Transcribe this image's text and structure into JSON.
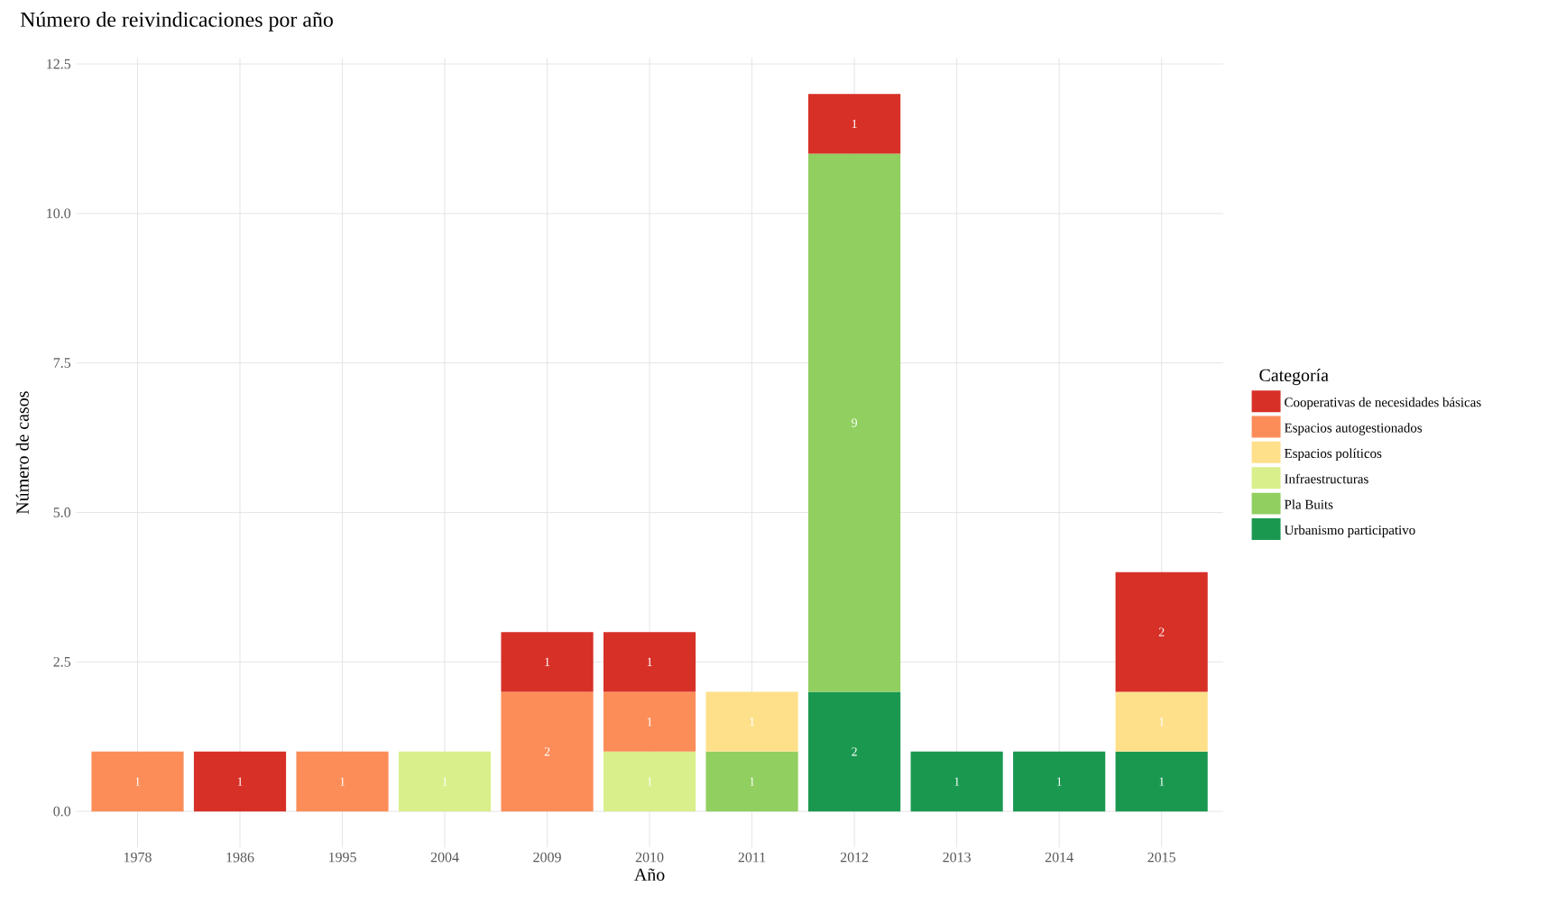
{
  "chart_data": {
    "type": "bar",
    "title": "Número de reivindicaciones por año",
    "xlabel": "Año",
    "ylabel": "Número de casos",
    "legend_title": "Categoría",
    "categories": [
      "1978",
      "1986",
      "1995",
      "2004",
      "2009",
      "2010",
      "2011",
      "2012",
      "2013",
      "2014",
      "2015"
    ],
    "stacked": true,
    "data_labels": true,
    "grid": true,
    "legend": "right",
    "ylim": [
      -0.6,
      12.6
    ],
    "yticks": [
      {
        "value": 0,
        "label": "0.0"
      },
      2.5,
      {
        "value": 5,
        "label": "5.0"
      },
      7.5,
      {
        "value": 10,
        "label": "10.0"
      },
      12.5
    ],
    "series": [
      {
        "name": "Urbanismo participativo",
        "color": "#1a9850",
        "values": [
          null,
          null,
          null,
          null,
          null,
          null,
          null,
          2,
          1,
          1,
          1
        ]
      },
      {
        "name": "Pla Buits",
        "color": "#91cf60",
        "values": [
          null,
          null,
          null,
          null,
          null,
          null,
          1,
          9,
          null,
          null,
          null
        ]
      },
      {
        "name": "Infraestructuras",
        "color": "#d9ef8b",
        "values": [
          null,
          null,
          null,
          1,
          null,
          1,
          null,
          null,
          null,
          null,
          null
        ]
      },
      {
        "name": "Espacios políticos",
        "color": "#fee08b",
        "values": [
          null,
          null,
          null,
          null,
          null,
          null,
          1,
          null,
          null,
          null,
          1
        ]
      },
      {
        "name": "Espacios autogestionados",
        "color": "#fc8d59",
        "values": [
          1,
          null,
          1,
          null,
          2,
          1,
          null,
          null,
          null,
          null,
          null
        ]
      },
      {
        "name": "Cooperativas de necesidades básicas",
        "color": "#d73027",
        "values": [
          null,
          1,
          null,
          null,
          1,
          1,
          null,
          1,
          null,
          null,
          2
        ]
      }
    ]
  }
}
